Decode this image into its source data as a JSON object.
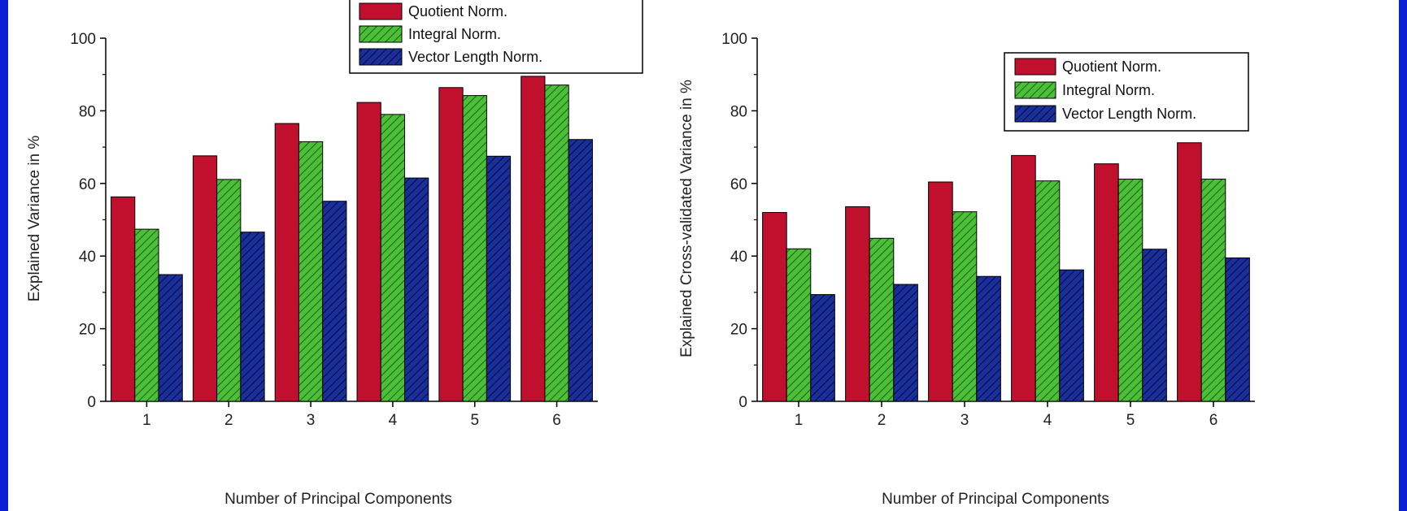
{
  "chart_data": [
    {
      "type": "bar",
      "xlabel": "Number of Principal Components",
      "ylabel": "Explained Variance in %",
      "ylim": [
        0,
        100
      ],
      "yticks": [
        0,
        20,
        40,
        60,
        80,
        100
      ],
      "categories": [
        "1",
        "2",
        "3",
        "4",
        "5",
        "6"
      ],
      "legend_position": "top-right",
      "series": [
        {
          "name": "Quotient Norm.",
          "color": "#c0102e",
          "pattern": "solid",
          "values": [
            56.3,
            67.6,
            76.5,
            82.3,
            86.4,
            89.5
          ]
        },
        {
          "name": "Integral Norm.",
          "color": "#4cbf38",
          "pattern": "hatch",
          "values": [
            47.4,
            61.1,
            71.5,
            79.0,
            84.2,
            87.1
          ]
        },
        {
          "name": "Vector Length Norm.",
          "color": "#1a2f9a",
          "pattern": "hatch",
          "values": [
            34.9,
            46.6,
            55.1,
            61.5,
            67.5,
            72.1
          ]
        }
      ]
    },
    {
      "type": "bar",
      "xlabel": "Number of Principal Components",
      "ylabel": "Explained Cross-validated Variance in %",
      "ylim": [
        0,
        100
      ],
      "yticks": [
        0,
        20,
        40,
        60,
        80,
        100
      ],
      "categories": [
        "1",
        "2",
        "3",
        "4",
        "5",
        "6"
      ],
      "legend_position": "top-right",
      "series": [
        {
          "name": "Quotient Norm.",
          "color": "#c0102e",
          "pattern": "solid",
          "values": [
            52.0,
            53.6,
            60.4,
            67.7,
            65.4,
            71.2
          ]
        },
        {
          "name": "Integral Norm.",
          "color": "#4cbf38",
          "pattern": "hatch",
          "values": [
            42.0,
            44.9,
            52.2,
            60.7,
            61.2,
            61.2
          ]
        },
        {
          "name": "Vector Length Norm.",
          "color": "#1a2f9a",
          "pattern": "hatch",
          "values": [
            29.4,
            32.2,
            34.4,
            36.2,
            41.9,
            39.5
          ]
        }
      ]
    }
  ]
}
